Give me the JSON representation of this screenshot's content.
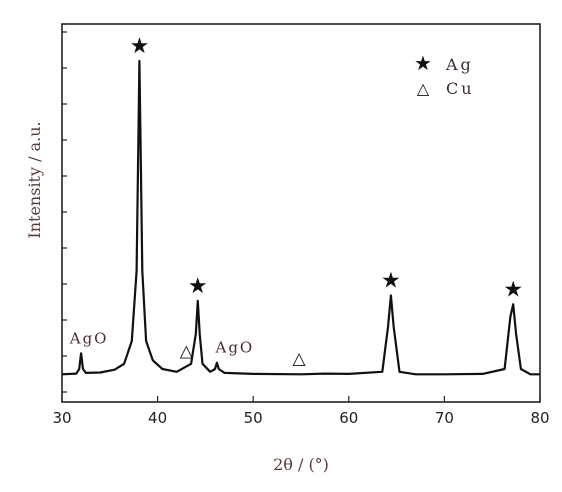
{
  "chart_data": {
    "type": "line",
    "title": "",
    "xlabel": "2θ / (°)",
    "ylabel": "Intensity / a.u.",
    "xlim": [
      30,
      80
    ],
    "xticks": [
      "30",
      "40",
      "50",
      "60",
      "70",
      "80"
    ],
    "y_ticks_labeled": false,
    "grid": false,
    "legend_position": "top-right",
    "legend": [
      {
        "symbol": "★",
        "label": "Ag",
        "icon": "star-icon"
      },
      {
        "symbol": "△",
        "label": "Cu",
        "icon": "triangle-icon"
      }
    ],
    "series": [
      {
        "x": [
          30,
          31.5,
          31.8,
          32.0,
          32.2,
          32.5,
          34,
          35.5,
          36.5,
          37.3,
          37.8,
          38.0,
          38.1,
          38.2,
          38.4,
          38.8,
          39.5,
          40.5,
          42,
          43.5,
          44.0,
          44.2,
          44.4,
          44.7,
          45.5,
          46.0,
          46.2,
          46.4,
          47,
          50,
          55,
          57.5,
          60,
          63.5,
          64.1,
          64.4,
          64.7,
          65.3,
          67,
          70,
          74,
          76.3,
          76.9,
          77.2,
          77.5,
          78,
          79,
          80
        ],
        "y": [
          0.5,
          0.7,
          2,
          6.5,
          2,
          0.9,
          1.0,
          1.8,
          3.5,
          10,
          30,
          70,
          90,
          70,
          30,
          10,
          4.5,
          2,
          1.2,
          3.5,
          12,
          21.5,
          12,
          3.5,
          1.2,
          2,
          3.8,
          2,
          0.9,
          0.6,
          0.5,
          0.7,
          0.6,
          1.2,
          14,
          23,
          14,
          1.2,
          0.5,
          0.5,
          0.6,
          2,
          17,
          20.5,
          12,
          2,
          0.5,
          0.5
        ]
      }
    ],
    "annotations": [
      {
        "text": "★",
        "x": 38.1,
        "icon": "star-icon"
      },
      {
        "text": "★",
        "x": 44.2,
        "icon": "star-icon"
      },
      {
        "text": "★",
        "x": 64.4,
        "icon": "star-icon"
      },
      {
        "text": "★",
        "x": 77.2,
        "icon": "star-icon"
      },
      {
        "text": "AgO",
        "x": 32.0
      },
      {
        "text": "AgO",
        "x": 46.2
      },
      {
        "text": "△",
        "x": 43.0,
        "icon": "triangle-icon"
      },
      {
        "text": "△",
        "x": 54.8,
        "icon": "triangle-icon"
      }
    ]
  }
}
